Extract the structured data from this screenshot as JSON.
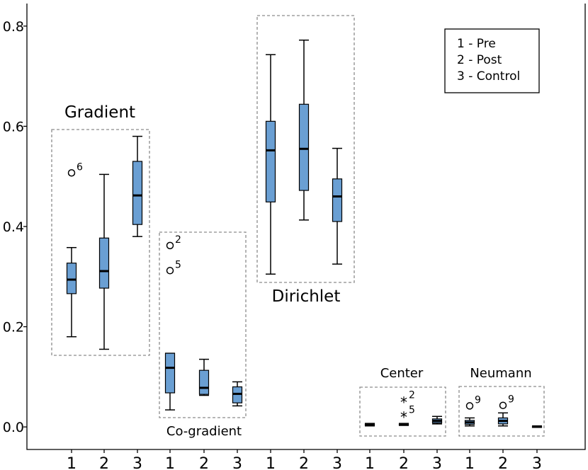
{
  "chart_data": {
    "type": "box",
    "ylim": [
      -0.045,
      0.845
    ],
    "y_ticks": [
      "0.0",
      "0.2",
      "0.4",
      "0.6",
      "0.8"
    ],
    "legend": [
      "1 - Pre",
      "2 - Post",
      "3 - Control"
    ],
    "groups": [
      {
        "name": "Gradient",
        "boxes": [
          {
            "label": "1",
            "min": 0.18,
            "q1": 0.266,
            "median": 0.294,
            "q3": 0.327,
            "max": 0.358,
            "outliers": [
              {
                "value": 0.507,
                "label": "6",
                "marker": "circle"
              }
            ]
          },
          {
            "label": "2",
            "min": 0.155,
            "q1": 0.277,
            "median": 0.311,
            "q3": 0.377,
            "max": 0.504,
            "outliers": []
          },
          {
            "label": "3",
            "min": 0.38,
            "q1": 0.404,
            "median": 0.462,
            "q3": 0.53,
            "max": 0.58,
            "outliers": []
          }
        ]
      },
      {
        "name": "Co-gradient",
        "boxes": [
          {
            "label": "1",
            "min": 0.034,
            "q1": 0.068,
            "median": 0.118,
            "q3": 0.147,
            "max": 0.147,
            "outliers": [
              {
                "value": 0.362,
                "label": "2",
                "marker": "circle"
              },
              {
                "value": 0.312,
                "label": "5",
                "marker": "circle"
              }
            ]
          },
          {
            "label": "2",
            "min": 0.063,
            "q1": 0.065,
            "median": 0.078,
            "q3": 0.113,
            "max": 0.135,
            "outliers": []
          },
          {
            "label": "3",
            "min": 0.042,
            "q1": 0.048,
            "median": 0.066,
            "q3": 0.08,
            "max": 0.09,
            "outliers": []
          }
        ]
      },
      {
        "name": "Dirichlet",
        "boxes": [
          {
            "label": "1",
            "min": 0.305,
            "q1": 0.449,
            "median": 0.552,
            "q3": 0.61,
            "max": 0.743,
            "outliers": []
          },
          {
            "label": "2",
            "min": 0.413,
            "q1": 0.472,
            "median": 0.555,
            "q3": 0.644,
            "max": 0.772,
            "outliers": []
          },
          {
            "label": "3",
            "min": 0.325,
            "q1": 0.41,
            "median": 0.46,
            "q3": 0.495,
            "max": 0.556,
            "outliers": []
          }
        ]
      },
      {
        "name": "Center",
        "boxes": [
          {
            "label": "1",
            "min": 0.002,
            "q1": 0.003,
            "median": 0.004,
            "q3": 0.006,
            "max": 0.007,
            "outliers": []
          },
          {
            "label": "2",
            "min": 0.003,
            "q1": 0.004,
            "median": 0.005,
            "q3": 0.006,
            "max": 0.007,
            "outliers": [
              {
                "value": 0.052,
                "label": "2",
                "marker": "star"
              },
              {
                "value": 0.022,
                "label": "5",
                "marker": "star"
              }
            ]
          },
          {
            "label": "3",
            "min": 0.006,
            "q1": 0.008,
            "median": 0.012,
            "q3": 0.016,
            "max": 0.021,
            "outliers": []
          }
        ]
      },
      {
        "name": "Neumann",
        "boxes": [
          {
            "label": "1",
            "min": 0.002,
            "q1": 0.005,
            "median": 0.009,
            "q3": 0.013,
            "max": 0.018,
            "outliers": [
              {
                "value": 0.042,
                "label": "9",
                "marker": "circle"
              }
            ]
          },
          {
            "label": "2",
            "min": 0.002,
            "q1": 0.006,
            "median": 0.012,
            "q3": 0.018,
            "max": 0.028,
            "outliers": [
              {
                "value": 0.043,
                "label": "9",
                "marker": "circle"
              }
            ]
          },
          {
            "label": "3",
            "min": 0.0,
            "q1": 0.001,
            "median": 0.001,
            "q3": 0.001,
            "max": 0.002,
            "outliers": []
          }
        ]
      }
    ]
  }
}
